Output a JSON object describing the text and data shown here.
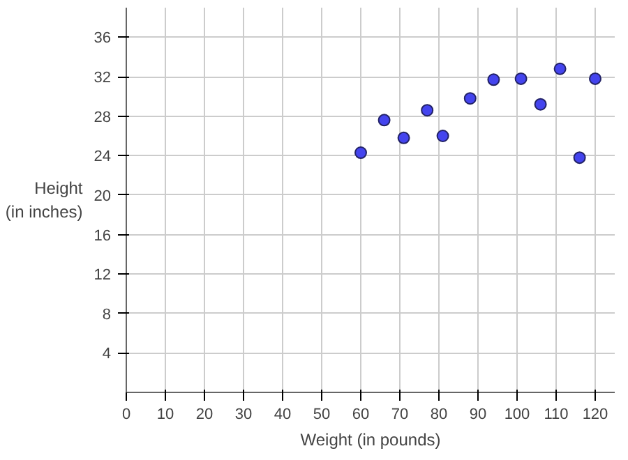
{
  "chart_data": {
    "type": "scatter",
    "xlabel": "Weight (in pounds)",
    "ylabel": "Height\n(in inches)",
    "x": [
      60,
      66,
      71,
      77,
      81,
      88,
      94,
      101,
      106,
      111,
      120,
      116
    ],
    "values": [
      24.3,
      27.6,
      25.8,
      28.6,
      26,
      29.8,
      31.7,
      31.8,
      29.2,
      32.8,
      31.8,
      23.8
    ],
    "color": "#4444ee",
    "marker": "circle",
    "grid": true,
    "xlim": [
      0,
      125
    ],
    "ylim": [
      0,
      39
    ],
    "xticks": [
      0,
      10,
      20,
      30,
      40,
      50,
      60,
      70,
      80,
      90,
      100,
      110,
      120
    ],
    "yticks": [
      4,
      8,
      12,
      16,
      20,
      24,
      28,
      32,
      36
    ]
  }
}
